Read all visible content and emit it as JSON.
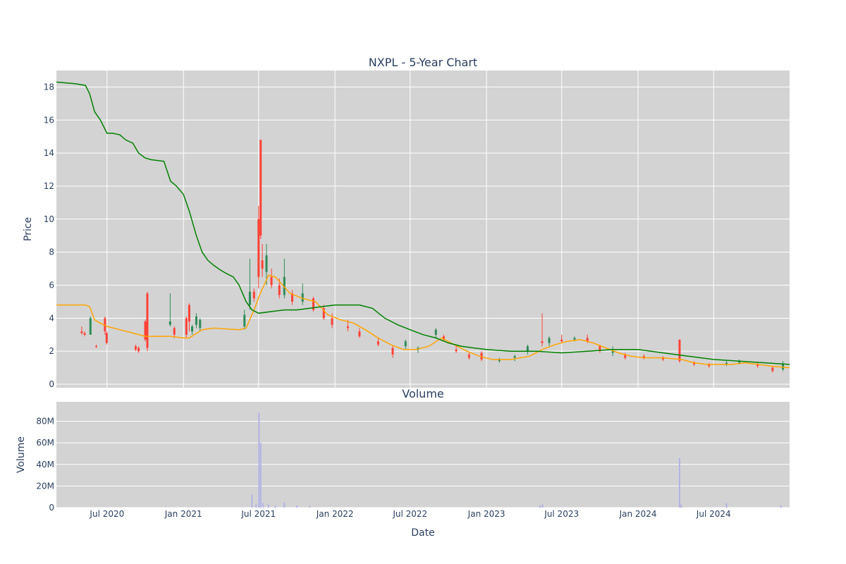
{
  "chart_data": [
    {
      "type": "candlestick",
      "title": "NXPL - 5-Year Chart",
      "xlabel": "",
      "ylabel": "Price",
      "xlim": [
        "2020-03-01",
        "2024-12-31"
      ],
      "ylim": [
        0,
        19
      ],
      "y_ticks": [
        "0",
        "2",
        "4",
        "6",
        "8",
        "10",
        "12",
        "14",
        "16",
        "18"
      ],
      "x_ticks": [
        {
          "date": "2020-07-01",
          "label": "Jul 2020"
        },
        {
          "date": "2021-01-01",
          "label": "Jan 2021"
        },
        {
          "date": "2021-07-01",
          "label": "Jul 2021"
        },
        {
          "date": "2022-01-01",
          "label": "Jan 2022"
        },
        {
          "date": "2022-07-01",
          "label": "Jul 2022"
        },
        {
          "date": "2023-01-01",
          "label": "Jan 2023"
        },
        {
          "date": "2023-07-01",
          "label": "Jul 2023"
        },
        {
          "date": "2024-01-01",
          "label": "Jan 2024"
        },
        {
          "date": "2024-07-01",
          "label": "Jul 2024"
        }
      ],
      "grid": true,
      "background": "#d3d3d3",
      "up_color": "#2e8b57",
      "down_color": "#ff4136",
      "candles": [
        [
          "2020-05-01",
          3.2,
          3.5,
          3.0,
          3.1
        ],
        [
          "2020-05-08",
          3.1,
          3.2,
          2.9,
          3.0
        ],
        [
          "2020-05-22",
          3.0,
          4.1,
          3.0,
          4.0
        ],
        [
          "2020-06-05",
          2.3,
          2.4,
          2.2,
          2.25
        ],
        [
          "2020-06-26",
          4.0,
          4.1,
          3.0,
          3.2
        ],
        [
          "2020-06-30",
          3.1,
          3.2,
          2.4,
          2.5
        ],
        [
          "2020-09-08",
          2.3,
          2.4,
          2.0,
          2.1
        ],
        [
          "2020-09-15",
          2.2,
          2.3,
          1.9,
          2.0
        ],
        [
          "2020-10-01",
          3.8,
          3.9,
          2.6,
          2.7
        ],
        [
          "2020-10-06",
          5.5,
          5.6,
          2.0,
          2.2
        ],
        [
          "2020-11-30",
          3.6,
          5.5,
          3.5,
          3.8
        ],
        [
          "2020-12-10",
          3.4,
          3.5,
          2.8,
          3.0
        ],
        [
          "2021-01-08",
          4.0,
          4.1,
          2.8,
          3.0
        ],
        [
          "2021-01-15",
          4.8,
          4.9,
          3.2,
          3.8
        ],
        [
          "2021-01-22",
          3.2,
          3.6,
          3.0,
          3.5
        ],
        [
          "2021-02-01",
          3.6,
          4.3,
          3.4,
          4.1
        ],
        [
          "2021-02-10",
          3.4,
          4.0,
          3.2,
          3.9
        ],
        [
          "2021-05-28",
          3.5,
          4.5,
          3.3,
          4.2
        ],
        [
          "2021-06-10",
          4.8,
          7.6,
          4.5,
          5.6
        ],
        [
          "2021-06-20",
          5.6,
          5.8,
          5.0,
          5.2
        ],
        [
          "2021-07-01",
          10.0,
          10.8,
          5.8,
          6.5
        ],
        [
          "2021-07-06",
          14.8,
          14.8,
          8.8,
          9.0
        ],
        [
          "2021-07-10",
          7.5,
          8.5,
          6.5,
          7.0
        ],
        [
          "2021-07-20",
          6.8,
          8.5,
          6.0,
          7.8
        ],
        [
          "2021-08-01",
          6.5,
          7.0,
          5.8,
          6.0
        ],
        [
          "2021-08-20",
          6.0,
          6.4,
          5.2,
          5.4
        ],
        [
          "2021-09-01",
          5.4,
          7.6,
          5.2,
          6.5
        ],
        [
          "2021-09-20",
          5.5,
          5.7,
          4.8,
          5.0
        ],
        [
          "2021-10-15",
          5.0,
          6.1,
          4.8,
          5.5
        ],
        [
          "2021-11-10",
          5.2,
          5.3,
          4.4,
          4.5
        ],
        [
          "2021-12-05",
          4.6,
          4.8,
          3.9,
          4.0
        ],
        [
          "2021-12-25",
          4.0,
          4.3,
          3.4,
          3.6
        ],
        [
          "2022-02-01",
          3.5,
          3.9,
          3.2,
          3.4
        ],
        [
          "2022-03-01",
          3.2,
          3.4,
          2.8,
          2.9
        ],
        [
          "2022-04-15",
          2.6,
          2.8,
          2.3,
          2.4
        ],
        [
          "2022-05-20",
          2.2,
          2.3,
          1.6,
          1.8
        ],
        [
          "2022-06-20",
          2.3,
          2.7,
          2.1,
          2.6
        ],
        [
          "2022-07-20",
          2.1,
          2.3,
          1.9,
          2.2
        ],
        [
          "2022-09-01",
          3.0,
          3.4,
          2.8,
          3.3
        ],
        [
          "2022-09-20",
          2.9,
          3.0,
          2.6,
          2.7
        ],
        [
          "2022-10-20",
          2.1,
          2.4,
          1.9,
          2.0
        ],
        [
          "2022-11-20",
          1.8,
          1.9,
          1.5,
          1.6
        ],
        [
          "2022-12-20",
          1.9,
          2.0,
          1.4,
          1.5
        ],
        [
          "2023-02-01",
          1.4,
          1.6,
          1.3,
          1.5
        ],
        [
          "2023-03-10",
          1.6,
          1.8,
          1.4,
          1.7
        ],
        [
          "2023-04-10",
          2.0,
          2.4,
          1.8,
          2.3
        ],
        [
          "2023-05-15",
          2.6,
          4.3,
          2.3,
          2.5
        ],
        [
          "2023-06-01",
          2.5,
          2.9,
          2.3,
          2.8
        ],
        [
          "2023-07-01",
          2.7,
          3.0,
          2.5,
          2.6
        ],
        [
          "2023-08-01",
          2.7,
          2.9,
          2.6,
          2.8
        ],
        [
          "2023-09-01",
          2.8,
          3.0,
          2.5,
          2.6
        ],
        [
          "2023-10-01",
          2.3,
          2.4,
          1.9,
          2.0
        ],
        [
          "2023-11-01",
          1.9,
          2.3,
          1.7,
          2.0
        ],
        [
          "2023-12-01",
          1.8,
          1.9,
          1.5,
          1.6
        ],
        [
          "2024-01-15",
          1.7,
          1.8,
          1.5,
          1.6
        ],
        [
          "2024-03-01",
          1.6,
          1.7,
          1.4,
          1.5
        ],
        [
          "2024-04-10",
          2.7,
          2.7,
          1.3,
          1.4
        ],
        [
          "2024-05-15",
          1.3,
          1.4,
          1.1,
          1.2
        ],
        [
          "2024-06-20",
          1.2,
          1.3,
          1.0,
          1.1
        ],
        [
          "2024-08-01",
          1.2,
          1.4,
          1.1,
          1.3
        ],
        [
          "2024-09-01",
          1.3,
          1.5,
          1.2,
          1.4
        ],
        [
          "2024-10-15",
          1.2,
          1.3,
          1.0,
          1.1
        ],
        [
          "2024-11-20",
          1.0,
          1.1,
          0.7,
          0.8
        ],
        [
          "2024-12-15",
          0.9,
          1.4,
          0.8,
          1.2
        ]
      ],
      "series": [
        {
          "color": "#ffa500",
          "type": "line",
          "points": [
            [
              "2020-03-01",
              4.8
            ],
            [
              "2020-05-10",
              4.8
            ],
            [
              "2020-05-20",
              4.7
            ],
            [
              "2020-06-01",
              3.9
            ],
            [
              "2020-06-15",
              3.7
            ],
            [
              "2020-07-01",
              3.5
            ],
            [
              "2020-08-01",
              3.3
            ],
            [
              "2020-09-01",
              3.1
            ],
            [
              "2020-10-01",
              2.9
            ],
            [
              "2020-12-01",
              2.9
            ],
            [
              "2021-01-01",
              2.8
            ],
            [
              "2021-01-15",
              2.8
            ],
            [
              "2021-02-15",
              3.3
            ],
            [
              "2021-03-15",
              3.4
            ],
            [
              "2021-05-15",
              3.3
            ],
            [
              "2021-06-01",
              3.4
            ],
            [
              "2021-06-20",
              4.5
            ],
            [
              "2021-07-05",
              5.5
            ],
            [
              "2021-07-25",
              6.6
            ],
            [
              "2021-08-10",
              6.5
            ],
            [
              "2021-09-15",
              5.5
            ],
            [
              "2021-10-15",
              5.2
            ],
            [
              "2021-11-15",
              5.0
            ],
            [
              "2021-12-15",
              4.2
            ],
            [
              "2022-01-15",
              3.9
            ],
            [
              "2022-02-15",
              3.7
            ],
            [
              "2022-03-15",
              3.3
            ],
            [
              "2022-04-15",
              2.8
            ],
            [
              "2022-05-15",
              2.4
            ],
            [
              "2022-06-15",
              2.1
            ],
            [
              "2022-07-15",
              2.1
            ],
            [
              "2022-08-15",
              2.3
            ],
            [
              "2022-09-15",
              2.8
            ],
            [
              "2022-10-15",
              2.4
            ],
            [
              "2022-11-15",
              2.0
            ],
            [
              "2022-12-15",
              1.7
            ],
            [
              "2023-01-15",
              1.5
            ],
            [
              "2023-03-01",
              1.5
            ],
            [
              "2023-04-15",
              1.7
            ],
            [
              "2023-05-15",
              2.1
            ],
            [
              "2023-06-15",
              2.4
            ],
            [
              "2023-07-15",
              2.6
            ],
            [
              "2023-08-15",
              2.7
            ],
            [
              "2023-09-15",
              2.5
            ],
            [
              "2023-10-15",
              2.2
            ],
            [
              "2023-11-15",
              1.9
            ],
            [
              "2023-12-15",
              1.7
            ],
            [
              "2024-01-15",
              1.6
            ],
            [
              "2024-03-01",
              1.6
            ],
            [
              "2024-04-15",
              1.5
            ],
            [
              "2024-05-15",
              1.3
            ],
            [
              "2024-06-15",
              1.2
            ],
            [
              "2024-07-15",
              1.2
            ],
            [
              "2024-08-15",
              1.2
            ],
            [
              "2024-09-15",
              1.3
            ],
            [
              "2024-10-15",
              1.2
            ],
            [
              "2024-11-15",
              1.1
            ],
            [
              "2024-12-31",
              1.0
            ]
          ]
        },
        {
          "color": "#008000",
          "type": "line",
          "points": [
            [
              "2020-03-01",
              18.3
            ],
            [
              "2020-04-15",
              18.2
            ],
            [
              "2020-05-10",
              18.1
            ],
            [
              "2020-05-20",
              17.6
            ],
            [
              "2020-06-01",
              16.5
            ],
            [
              "2020-06-15",
              16.0
            ],
            [
              "2020-07-01",
              15.2
            ],
            [
              "2020-07-15",
              15.2
            ],
            [
              "2020-08-01",
              15.1
            ],
            [
              "2020-08-15",
              14.8
            ],
            [
              "2020-09-01",
              14.6
            ],
            [
              "2020-09-15",
              14.0
            ],
            [
              "2020-10-01",
              13.7
            ],
            [
              "2020-10-15",
              13.6
            ],
            [
              "2020-11-15",
              13.5
            ],
            [
              "2020-12-01",
              12.3
            ],
            [
              "2020-12-15",
              12.0
            ],
            [
              "2021-01-01",
              11.5
            ],
            [
              "2021-01-15",
              10.5
            ],
            [
              "2021-02-01",
              9.0
            ],
            [
              "2021-02-15",
              8.0
            ],
            [
              "2021-03-01",
              7.5
            ],
            [
              "2021-03-15",
              7.2
            ],
            [
              "2021-04-01",
              6.9
            ],
            [
              "2021-04-15",
              6.7
            ],
            [
              "2021-05-01",
              6.5
            ],
            [
              "2021-05-15",
              6.0
            ],
            [
              "2021-06-01",
              5.0
            ],
            [
              "2021-06-15",
              4.5
            ],
            [
              "2021-07-01",
              4.3
            ],
            [
              "2021-08-01",
              4.4
            ],
            [
              "2021-09-01",
              4.5
            ],
            [
              "2021-10-01",
              4.5
            ],
            [
              "2021-11-01",
              4.6
            ],
            [
              "2021-12-01",
              4.7
            ],
            [
              "2022-01-01",
              4.8
            ],
            [
              "2022-02-01",
              4.8
            ],
            [
              "2022-03-01",
              4.8
            ],
            [
              "2022-04-01",
              4.6
            ],
            [
              "2022-05-01",
              4.0
            ],
            [
              "2022-06-01",
              3.6
            ],
            [
              "2022-07-01",
              3.3
            ],
            [
              "2022-08-01",
              3.0
            ],
            [
              "2022-09-01",
              2.8
            ],
            [
              "2022-10-01",
              2.5
            ],
            [
              "2022-11-01",
              2.3
            ],
            [
              "2022-12-01",
              2.2
            ],
            [
              "2023-01-01",
              2.1
            ],
            [
              "2023-03-01",
              2.0
            ],
            [
              "2023-05-01",
              2.0
            ],
            [
              "2023-07-01",
              1.9
            ],
            [
              "2023-09-01",
              2.0
            ],
            [
              "2023-11-01",
              2.1
            ],
            [
              "2024-01-01",
              2.1
            ],
            [
              "2024-03-01",
              1.9
            ],
            [
              "2024-05-01",
              1.7
            ],
            [
              "2024-07-01",
              1.5
            ],
            [
              "2024-09-01",
              1.4
            ],
            [
              "2024-11-01",
              1.3
            ],
            [
              "2024-12-31",
              1.2
            ]
          ]
        }
      ]
    },
    {
      "type": "bar",
      "title": "Volume",
      "xlabel": "Date",
      "ylabel": "Volume",
      "ylim": [
        0,
        98000000
      ],
      "y_ticks": [
        {
          "value": 0,
          "label": "0"
        },
        {
          "value": 20000000,
          "label": "20M"
        },
        {
          "value": 40000000,
          "label": "40M"
        },
        {
          "value": 60000000,
          "label": "60M"
        },
        {
          "value": 80000000,
          "label": "80M"
        }
      ],
      "bar_color": "#b3b3e6",
      "points": [
        [
          "2021-06-15",
          12000000
        ],
        [
          "2021-06-25",
          3000000
        ],
        [
          "2021-07-02",
          88000000
        ],
        [
          "2021-07-06",
          60000000
        ],
        [
          "2021-07-12",
          4000000
        ],
        [
          "2021-07-25",
          3000000
        ],
        [
          "2021-08-10",
          2000000
        ],
        [
          "2021-09-01",
          5000000
        ],
        [
          "2021-10-01",
          2000000
        ],
        [
          "2021-11-01",
          1500000
        ],
        [
          "2023-05-10",
          2000000
        ],
        [
          "2023-05-16",
          3000000
        ],
        [
          "2024-04-10",
          46000000
        ],
        [
          "2024-04-14",
          3000000
        ],
        [
          "2024-08-01",
          4000000
        ],
        [
          "2024-12-10",
          2000000
        ]
      ]
    }
  ]
}
